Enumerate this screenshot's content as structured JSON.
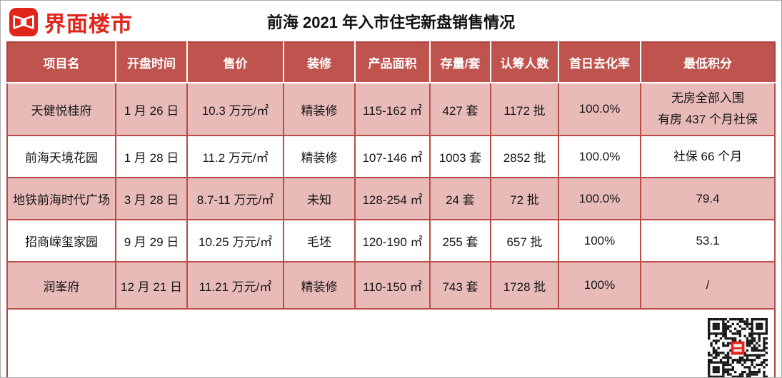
{
  "masthead": {
    "brand": "界面楼市",
    "title": "前海 2021 年入市住宅新盘销售情况"
  },
  "table": {
    "columns": [
      "项目名",
      "开盘时间",
      "售价",
      "装修",
      "产品面积",
      "存量/套",
      "认筹人数",
      "首日去化率",
      "最低积分"
    ],
    "rows": [
      {
        "project": "天健悦桂府",
        "open_date": "1 月 26 日",
        "price": "10.3 万元/㎡",
        "decoration": "精装修",
        "area": "115-162 ㎡",
        "stock": "427 套",
        "subscribers": "1172 批",
        "first_day_rate": "100.0%",
        "min_points": "无房全部入围\n有房 437 个月社保"
      },
      {
        "project": "前海天境花园",
        "open_date": "1 月 28 日",
        "price": "11.2 万元/㎡",
        "decoration": "精装修",
        "area": "107-146 ㎡",
        "stock": "1003 套",
        "subscribers": "2852 批",
        "first_day_rate": "100.0%",
        "min_points": "社保 66 个月"
      },
      {
        "project": "地铁前海时代广场",
        "open_date": "3 月 28 日",
        "price": "8.7-11 万元/㎡",
        "decoration": "未知",
        "area": "128-254 ㎡",
        "stock": "24 套",
        "subscribers": "72 批",
        "first_day_rate": "100.0%",
        "min_points": "79.4"
      },
      {
        "project": "招商嵘玺家园",
        "open_date": "9 月 29 日",
        "price": "10.25 万元/㎡",
        "decoration": "毛坯",
        "area": "120-190 ㎡",
        "stock": "255 套",
        "subscribers": "657 批",
        "first_day_rate": "100%",
        "min_points": "53.1"
      },
      {
        "project": "润峯府",
        "open_date": "12 月 21 日",
        "price": "11.21 万元/㎡",
        "decoration": "精装修",
        "area": "110-150 ㎡",
        "stock": "743 套",
        "subscribers": "1728 批",
        "first_day_rate": "100%",
        "min_points": "/"
      }
    ]
  },
  "colors": {
    "header_bg": "#bf544f",
    "row_alt_bg": "#e8bbb9",
    "table_border": "#b0413d",
    "brand_red": "#e1251b",
    "header_text": "#ffffff",
    "body_text": "#161616"
  }
}
